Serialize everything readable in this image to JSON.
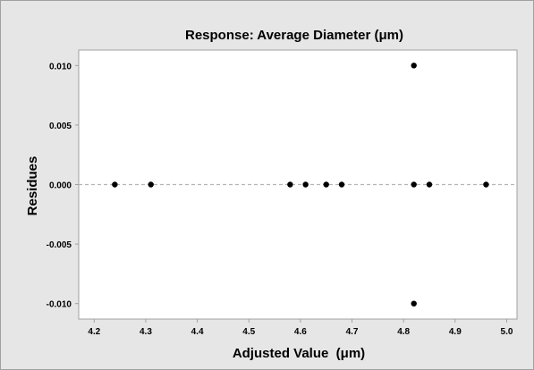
{
  "chart_data": {
    "type": "scatter",
    "title": "Response: Average Diameter (μm)",
    "xlabel": "Adjusted Value  (μm)",
    "ylabel": "Residues",
    "xlim": [
      4.17,
      5.02
    ],
    "ylim": [
      -0.0113,
      0.0113
    ],
    "xticks": [
      4.2,
      4.3,
      4.4,
      4.5,
      4.6,
      4.7,
      4.8,
      4.9,
      5.0
    ],
    "xtick_labels": [
      "4.2",
      "4.3",
      "4.4",
      "4.5",
      "4.6",
      "4.7",
      "4.8",
      "4.9",
      "5.0"
    ],
    "yticks": [
      0.01,
      0.005,
      0.0,
      -0.005,
      -0.01
    ],
    "ytick_labels": [
      "0.010",
      "0.005",
      "0.000",
      "-0.005",
      "-0.010"
    ],
    "grid": false,
    "reference_line": {
      "y": 0.0,
      "style": "dashed"
    },
    "points": [
      {
        "x": 4.24,
        "y": 0.0
      },
      {
        "x": 4.31,
        "y": 0.0
      },
      {
        "x": 4.58,
        "y": 0.0
      },
      {
        "x": 4.61,
        "y": 0.0
      },
      {
        "x": 4.65,
        "y": 0.0
      },
      {
        "x": 4.68,
        "y": 0.0
      },
      {
        "x": 4.82,
        "y": 0.0
      },
      {
        "x": 4.85,
        "y": 0.0
      },
      {
        "x": 4.96,
        "y": 0.0
      },
      {
        "x": 4.82,
        "y": 0.01
      },
      {
        "x": 4.82,
        "y": -0.01
      }
    ],
    "colors": {
      "outer_background": "#e6e6e6",
      "plot_background": "#ffffff",
      "frame": "#a0a0a0",
      "point": "#000000",
      "reference_line": "#b4b4b4",
      "text": "#000000"
    }
  }
}
